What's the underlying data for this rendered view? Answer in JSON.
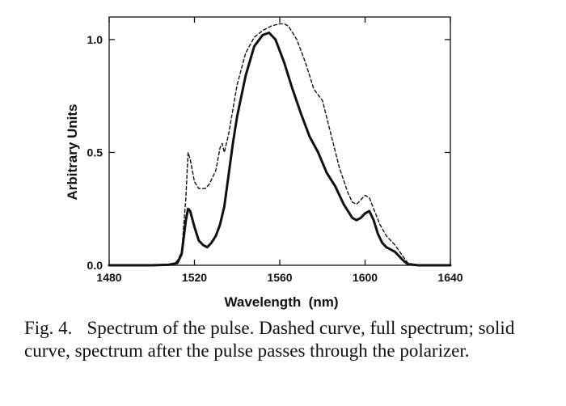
{
  "chart_data": {
    "type": "line",
    "xlabel": "Wavelength  (nm)",
    "ylabel": "Arbitrary Units",
    "xlim": [
      1480,
      1640
    ],
    "ylim": [
      0,
      1.1
    ],
    "x_ticks": [
      1480,
      1520,
      1560,
      1600,
      1640
    ],
    "x_tick_labels": [
      "1480",
      "1520",
      "1560",
      "1600",
      "1640"
    ],
    "y_ticks": [
      0,
      0.5,
      1.0
    ],
    "y_tick_labels": [
      "0.0",
      "0.5",
      "1.0"
    ],
    "grid": false,
    "legend": "none",
    "series": [
      {
        "style": "dashed",
        "color": "#111111",
        "x": [
          1480,
          1500,
          1510,
          1512,
          1514,
          1516,
          1517,
          1518,
          1520,
          1522,
          1525,
          1527,
          1530,
          1532,
          1533,
          1534,
          1536,
          1540,
          1544,
          1548,
          1552,
          1556,
          1560,
          1562,
          1564,
          1568,
          1572,
          1576,
          1580,
          1584,
          1588,
          1592,
          1594,
          1596,
          1598,
          1600,
          1602,
          1604,
          1607,
          1610,
          1614,
          1617,
          1620,
          1625,
          1640
        ],
        "y": [
          0.0,
          0.0,
          0.005,
          0.02,
          0.06,
          0.3,
          0.5,
          0.47,
          0.37,
          0.34,
          0.34,
          0.36,
          0.42,
          0.52,
          0.54,
          0.5,
          0.58,
          0.8,
          0.94,
          1.01,
          1.04,
          1.06,
          1.07,
          1.07,
          1.06,
          1.0,
          0.9,
          0.78,
          0.73,
          0.58,
          0.43,
          0.32,
          0.28,
          0.27,
          0.29,
          0.31,
          0.3,
          0.25,
          0.18,
          0.13,
          0.09,
          0.05,
          0.01,
          0.0,
          0.0
        ]
      },
      {
        "style": "solid",
        "color": "#111111",
        "x": [
          1480,
          1500,
          1508,
          1512,
          1514,
          1516,
          1517,
          1518,
          1520,
          1522,
          1524,
          1526,
          1528,
          1530,
          1532,
          1534,
          1536,
          1538,
          1540,
          1544,
          1548,
          1552,
          1555,
          1558,
          1562,
          1566,
          1570,
          1574,
          1578,
          1582,
          1586,
          1590,
          1594,
          1596,
          1598,
          1600,
          1602,
          1604,
          1606,
          1608,
          1610,
          1614,
          1616,
          1618,
          1620,
          1625,
          1640
        ],
        "y": [
          0.0,
          0.0,
          0.002,
          0.01,
          0.05,
          0.2,
          0.25,
          0.24,
          0.17,
          0.11,
          0.09,
          0.08,
          0.1,
          0.13,
          0.18,
          0.26,
          0.4,
          0.54,
          0.66,
          0.84,
          0.97,
          1.02,
          1.03,
          1.0,
          0.9,
          0.78,
          0.67,
          0.57,
          0.5,
          0.41,
          0.35,
          0.27,
          0.21,
          0.2,
          0.21,
          0.23,
          0.24,
          0.2,
          0.14,
          0.1,
          0.08,
          0.06,
          0.04,
          0.02,
          0.005,
          0.0,
          0.0
        ]
      }
    ]
  },
  "caption": {
    "label": "Fig. 4.",
    "text": "Spectrum of the pulse.  Dashed curve, full spectrum; solid curve, spectrum after the pulse passes through the polarizer."
  }
}
